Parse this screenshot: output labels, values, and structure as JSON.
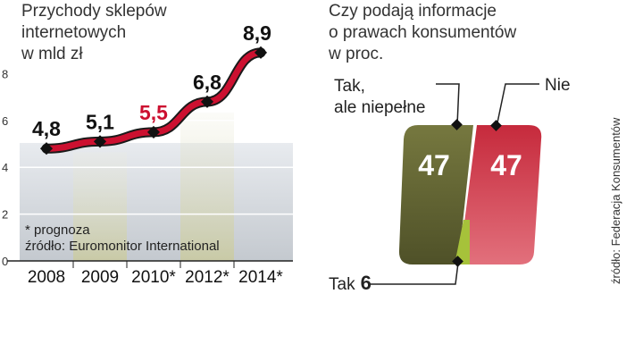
{
  "left_chart": {
    "title_lines": [
      "Przychody sklepów",
      "internetowych",
      "w mld zł"
    ],
    "footnote": "* prognoza",
    "source": "źródło: Euromonitor International"
  },
  "right_chart": {
    "title_lines": [
      "Czy podają informacje",
      "o prawach konsumentów",
      "w proc."
    ],
    "label_tak_niepelne": [
      "Tak,",
      "ale niepełne"
    ],
    "label_nie": "Nie",
    "label_tak_prefix": "Tak",
    "source": "źródło: Federacja Konsumentów"
  },
  "colors": {
    "line": "#cc1030",
    "highlight_label": "#cc1030",
    "bar_olive": "#6b6d3a",
    "bar_red": "#c8283e",
    "bar_lime": "#a6c23a",
    "grid_bg": "#d7dbe0"
  },
  "chart_data": [
    {
      "type": "line",
      "title": "Przychody sklepów internetowych w mld zł",
      "x": [
        "2008",
        "2009",
        "2010*",
        "2012*",
        "2014*"
      ],
      "series": [
        {
          "values": [
            4.8,
            5.1,
            5.5,
            6.8,
            8.9
          ],
          "labels": [
            "4,8",
            "5,1",
            "5,5",
            "6,8",
            "8,9"
          ]
        }
      ],
      "highlight_index": 2,
      "y_ticks": [
        0,
        2,
        4,
        6,
        8
      ],
      "ylim": [
        0,
        8
      ],
      "grid": true
    },
    {
      "type": "pie",
      "title": "Czy podają informacje o prawach konsumentów w proc.",
      "slices": [
        {
          "name": "Tak, ale niepełne",
          "value": 47,
          "label": "47",
          "color": "#6b6d3a"
        },
        {
          "name": "Nie",
          "value": 47,
          "label": "47",
          "color": "#c8283e"
        },
        {
          "name": "Tak",
          "value": 6,
          "label": "6",
          "color": "#a6c23a"
        }
      ]
    }
  ]
}
